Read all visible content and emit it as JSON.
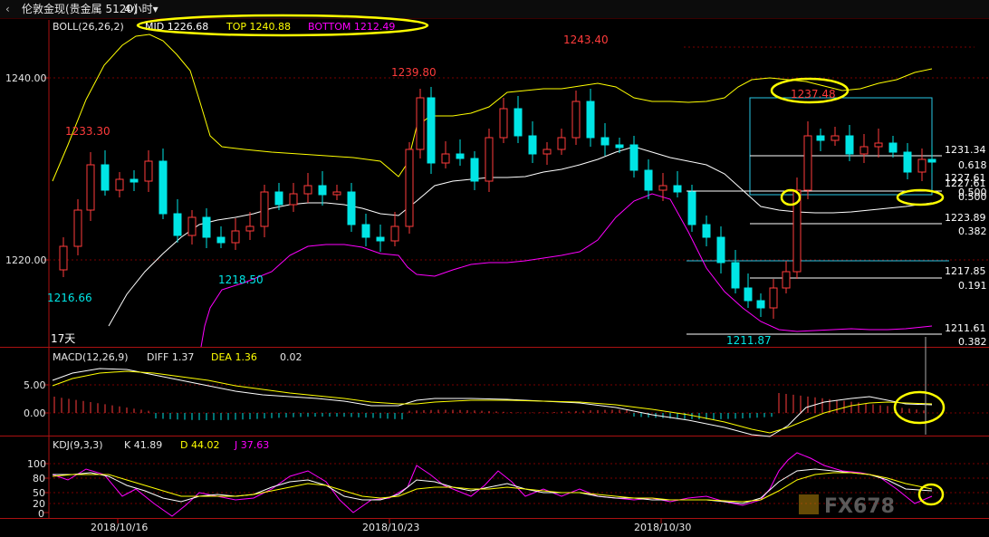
{
  "topbar": {
    "back_glyph": "‹",
    "symbol": "伦敦金现(贵金属 5120)",
    "period": "4小时▾"
  },
  "boll": {
    "label": "BOLL(26,26,2)",
    "mid": "MID 1226.68",
    "top": "TOP 1240.88",
    "bottom": "BOTTOM 1212.49"
  },
  "macd": {
    "label": "MACD(12,26,9)",
    "diff": "DIFF 1.37",
    "dea": "DEA 1.36",
    "value": "0.02"
  },
  "kdj": {
    "label": "KDJ(9,3,3)",
    "k": "K 41.89",
    "d": "D 44.02",
    "j": "J 37.63"
  },
  "main_axis": [
    "1240.00",
    "1220.00"
  ],
  "macd_axis": [
    "5.00",
    "0.00"
  ],
  "kdj_axis": [
    "100",
    "80",
    "50",
    "20",
    "0"
  ],
  "price_labels": {
    "p1233": "1233.30",
    "p1239": "1239.80",
    "p1243": "1243.40",
    "p1237": "1237.48",
    "p1218": "1218.50",
    "p1216": "1216.66",
    "p1211": "1211.87"
  },
  "fib": {
    "levels": [
      "1231.34",
      "1227.61",
      "1227.61",
      "1223.89",
      "1217.85",
      "1211.61"
    ],
    "ratios": [
      "0.618",
      "0.500",
      "0.500",
      "0.382",
      "0.191",
      "0.382"
    ]
  },
  "days_label": "17天",
  "dates": [
    "2018/10/16",
    "2018/10/23",
    "2018/10/30"
  ],
  "watermark": "FX678",
  "colors": {
    "up": "#ff3b3b",
    "down": "#00e5e5",
    "mid": "#ffffff",
    "top": "#ffff00",
    "bottom": "#ff00ff",
    "highlight": "#ffff00",
    "grid": "#7a0000",
    "box": "#27c9e6"
  }
}
